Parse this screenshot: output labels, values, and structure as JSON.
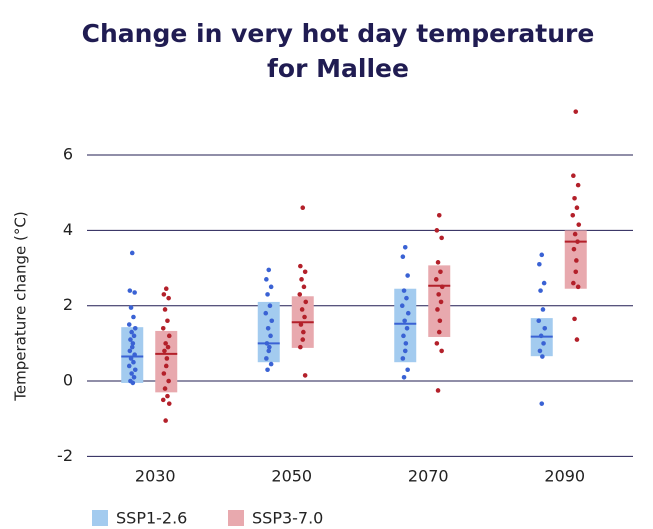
{
  "chart_data": {
    "type": "box",
    "title": [
      "Change in very hot day temperature",
      "for Mallee"
    ],
    "y_label": "Temperature change (°C)",
    "categories": [
      "2030",
      "2050",
      "2070",
      "2090"
    ],
    "ylim": [
      -2,
      7.3
    ],
    "yticks": [
      -2,
      0,
      2,
      4,
      6
    ],
    "grid": true,
    "legend": "bottom-left",
    "series": [
      {
        "name": "SSP1-2.6",
        "color": "#3a62d4",
        "box_color": "#a3cbef",
        "low": [
          -0.05,
          0.5,
          0.5,
          0.66
        ],
        "median": [
          0.65,
          1.0,
          1.52,
          1.18
        ],
        "high": [
          1.43,
          2.1,
          2.45,
          1.67
        ],
        "points": [
          [
            3.4,
            2.4,
            2.35,
            1.95,
            1.7,
            1.5,
            1.4,
            1.3,
            1.2,
            1.1,
            1.0,
            0.9,
            0.8,
            0.7,
            0.6,
            0.5,
            0.4,
            0.3,
            0.2,
            0.1,
            0.0,
            -0.05
          ],
          [
            2.95,
            2.7,
            2.5,
            2.3,
            2.0,
            1.8,
            1.6,
            1.4,
            1.2,
            1.0,
            0.9,
            0.8,
            0.6,
            0.45,
            0.3
          ],
          [
            3.55,
            3.3,
            2.8,
            2.4,
            2.2,
            2.0,
            1.8,
            1.6,
            1.4,
            1.2,
            1.0,
            0.8,
            0.6,
            0.3,
            0.1
          ],
          [
            3.35,
            3.1,
            2.6,
            2.4,
            1.9,
            1.6,
            1.4,
            1.2,
            1.0,
            0.8,
            0.65,
            -0.6
          ]
        ]
      },
      {
        "name": "SSP3-7.0",
        "color": "#b3202a",
        "box_color": "#e8a9ae",
        "low": [
          -0.3,
          0.88,
          1.17,
          2.45
        ],
        "median": [
          0.72,
          1.56,
          2.53,
          3.7
        ],
        "high": [
          1.33,
          2.25,
          3.07,
          4.0
        ],
        "points": [
          [
            2.45,
            2.3,
            2.2,
            1.9,
            1.6,
            1.4,
            1.2,
            1.0,
            0.9,
            0.8,
            0.6,
            0.4,
            0.2,
            0.0,
            -0.2,
            -0.4,
            -0.5,
            -0.6,
            -1.05
          ],
          [
            4.6,
            3.05,
            2.9,
            2.7,
            2.5,
            2.3,
            2.1,
            1.9,
            1.7,
            1.5,
            1.3,
            1.1,
            0.9,
            0.15
          ],
          [
            4.4,
            4.0,
            3.8,
            3.15,
            2.9,
            2.7,
            2.5,
            2.3,
            2.1,
            1.9,
            1.6,
            1.3,
            1.0,
            0.8,
            -0.25
          ],
          [
            7.15,
            5.45,
            5.2,
            4.85,
            4.6,
            4.4,
            4.15,
            3.9,
            3.7,
            3.5,
            3.2,
            2.9,
            2.6,
            2.5,
            1.65,
            1.1
          ]
        ]
      }
    ]
  }
}
